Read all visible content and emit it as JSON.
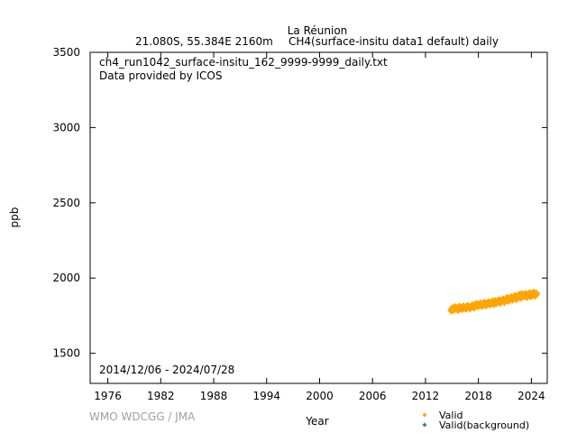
{
  "header": {
    "station": "La Réunion",
    "location": "21.080S, 55.384E 2160m",
    "dataset": "CH4(surface-insitu data1 default) daily"
  },
  "annotations": {
    "filename": "ch4_run1042_surface-insitu_162_9999-9999_daily.txt",
    "provider": "Data provided by ICOS",
    "period": "2014/12/06 - 2024/07/28"
  },
  "credit": "WMO WDCGG / JMA",
  "colors": {
    "valid": "#ffa500",
    "background": "#2e8b57"
  },
  "chart_data": {
    "type": "scatter",
    "xlabel": "Year",
    "ylabel": "ppb",
    "xlim": [
      1974.0,
      2025.8
    ],
    "ylim": [
      1300,
      3500
    ],
    "x_ticks": [
      1976,
      1982,
      1988,
      1994,
      2000,
      2006,
      2012,
      2018,
      2024
    ],
    "y_ticks": [
      1500,
      2000,
      2500,
      3000,
      3500
    ],
    "grid": false,
    "legend": {
      "placement": "bottom-right",
      "entries": [
        "Valid",
        "Valid(background)"
      ]
    },
    "series": [
      {
        "name": "Valid",
        "marker": "diamond",
        "x": [
          2014.95,
          2015.1,
          2015.25,
          2015.4,
          2015.55,
          2015.7,
          2015.85,
          2016.0,
          2016.15,
          2016.3,
          2016.45,
          2016.6,
          2016.75,
          2016.9,
          2017.05,
          2017.2,
          2017.35,
          2017.5,
          2017.65,
          2017.8,
          2017.95,
          2018.1,
          2018.25,
          2018.4,
          2018.55,
          2018.7,
          2018.85,
          2019.0,
          2019.15,
          2019.3,
          2019.45,
          2019.6,
          2019.75,
          2019.9,
          2020.05,
          2020.2,
          2020.35,
          2020.5,
          2020.65,
          2020.8,
          2020.95,
          2021.1,
          2021.25,
          2021.4,
          2021.55,
          2021.7,
          2021.85,
          2022.0,
          2022.15,
          2022.3,
          2022.45,
          2022.6,
          2022.75,
          2022.9,
          2023.05,
          2023.2,
          2023.35,
          2023.5,
          2023.65,
          2023.8,
          2023.95,
          2024.1,
          2024.25,
          2024.4,
          2024.55
        ],
        "y": [
          1785,
          1800,
          1792,
          1806,
          1795,
          1789,
          1808,
          1800,
          1795,
          1810,
          1803,
          1798,
          1813,
          1807,
          1800,
          1812,
          1818,
          1805,
          1820,
          1826,
          1813,
          1822,
          1830,
          1816,
          1828,
          1835,
          1820,
          1826,
          1838,
          1825,
          1834,
          1843,
          1828,
          1846,
          1836,
          1842,
          1852,
          1838,
          1850,
          1856,
          1842,
          1858,
          1866,
          1850,
          1862,
          1872,
          1858,
          1868,
          1880,
          1862,
          1876,
          1886,
          1870,
          1892,
          1878,
          1885,
          1894,
          1875,
          1890,
          1898,
          1880,
          1894,
          1902,
          1884,
          1896
        ]
      },
      {
        "name": "Valid(background)",
        "marker": "diamond",
        "x": [],
        "y": []
      }
    ]
  }
}
